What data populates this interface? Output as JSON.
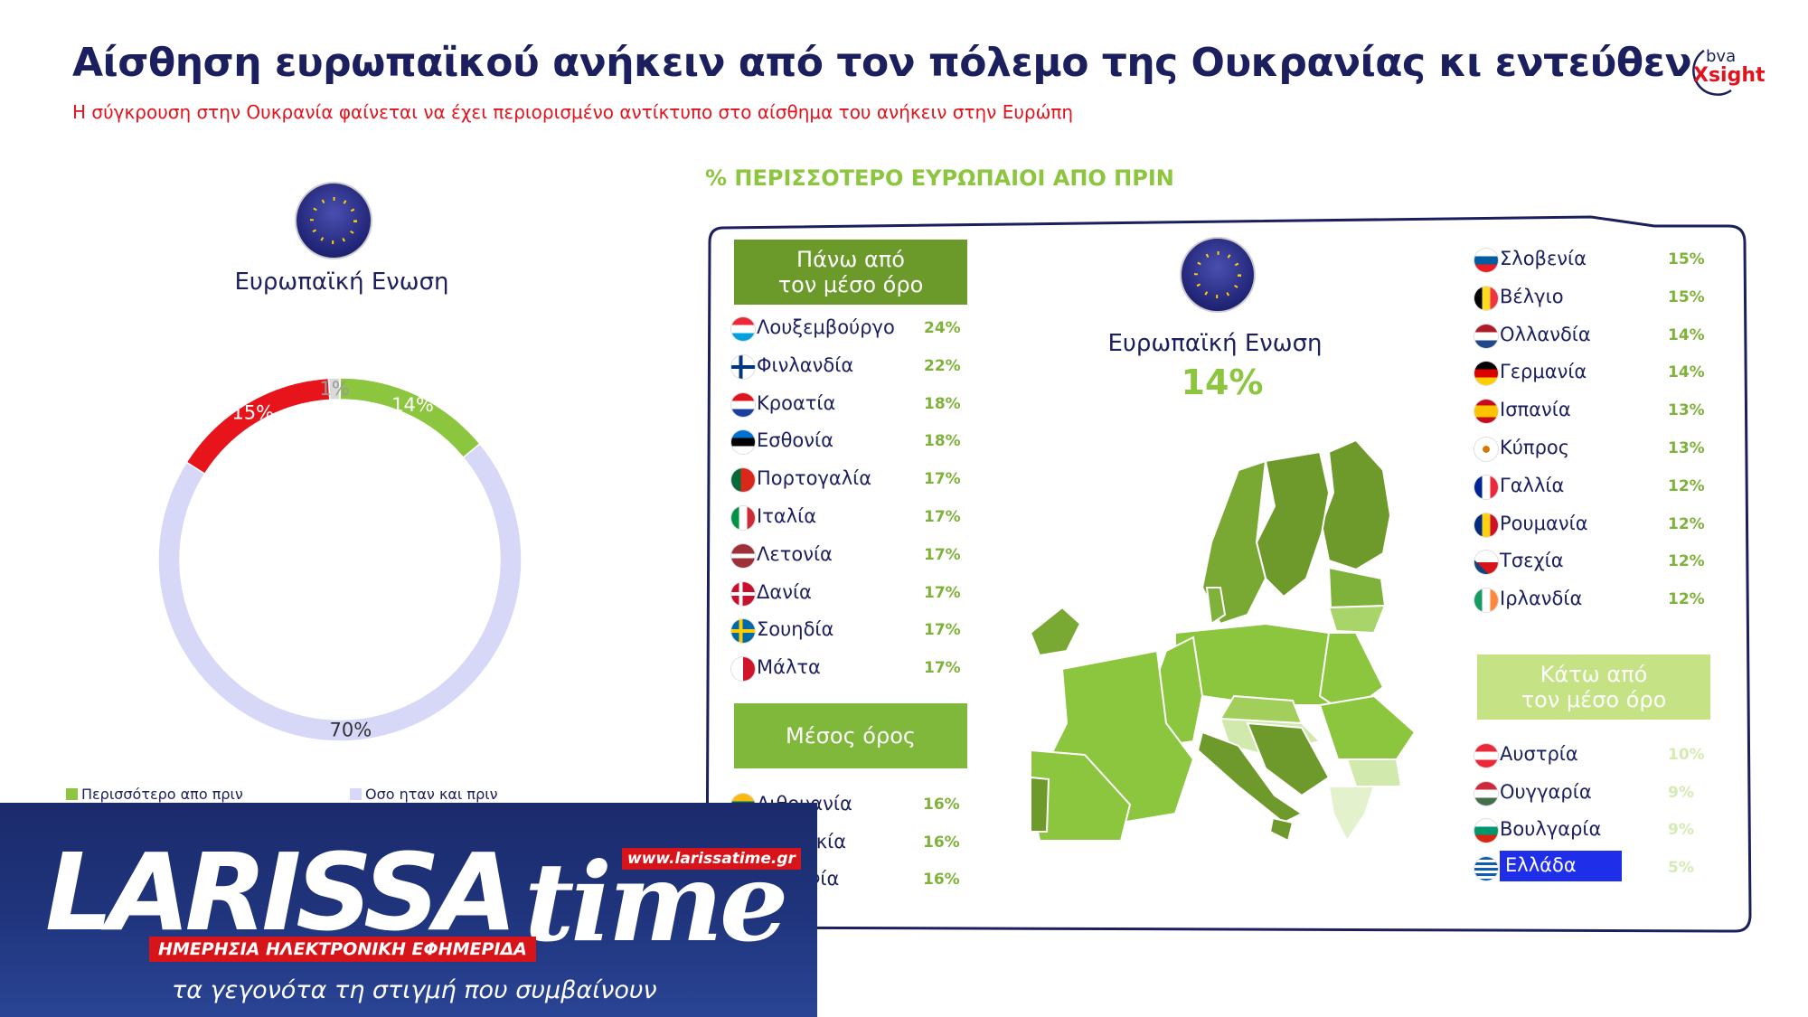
{
  "header": {
    "title": "Αίσθηση ευρωπαϊκού ανήκειν από τον πόλεμο της Ουκρανίας κι εντεύθεν",
    "subtitle": "Η σύγκρουση στην Ουκρανία φαίνεται να έχει περιορισμένο αντίκτυπο στο αίσθημα του ανήκειν στην Ευρώπη",
    "logo": {
      "line1": "bva",
      "line2": "Xsight"
    }
  },
  "chart_data": {
    "type": "pie",
    "title": "Ευρωπαϊκή Ενωση",
    "categories": [
      "Περισσότερο απο πριν",
      "Οσο ηταν και πριν",
      null,
      null
    ],
    "values": [
      14,
      70,
      15,
      1
    ],
    "value_labels": [
      "14%",
      "70%",
      "15%",
      "1%"
    ],
    "colors": [
      "#8cc63f",
      "#d7d7f8",
      "#e8141b",
      "#d9d9d9"
    ]
  },
  "panel": {
    "heading": "% ΠΕΡΙΣΣΟΤΕΡΟ ΕΥΡΩΠΑΙΟΙ ΑΠΟ ΠΡΙΝ",
    "eu_label": "Ευρωπαϊκή Ενωση",
    "eu_value": "14%",
    "above": {
      "title": [
        "Πάνω από",
        "τον μέσο όρο"
      ],
      "rows": [
        {
          "name": "Λουξεμβούργο",
          "value": "24%"
        },
        {
          "name": "Φινλανδία",
          "value": "22%"
        },
        {
          "name": "Κροατία",
          "value": "18%"
        },
        {
          "name": "Εσθονία",
          "value": "18%"
        },
        {
          "name": "Πορτογαλία",
          "value": "17%"
        },
        {
          "name": "Ιταλία",
          "value": "17%"
        },
        {
          "name": "Λετονία",
          "value": "17%"
        },
        {
          "name": "Δανία",
          "value": "17%"
        },
        {
          "name": "Σουηδία",
          "value": "17%"
        },
        {
          "name": "Μάλτα",
          "value": "17%"
        }
      ]
    },
    "average": {
      "title": "Μέσος όρος",
      "rows": [
        {
          "name": "Λιθουανία",
          "value": "16%"
        },
        {
          "name": "Σλοβακία",
          "value": "16%"
        },
        {
          "name": "Πολωνία",
          "value": "16%"
        }
      ]
    },
    "middle": {
      "rows": [
        {
          "name": "Σλοβενία",
          "value": "15%"
        },
        {
          "name": "Βέλγιο",
          "value": "15%"
        },
        {
          "name": "Ολλανδία",
          "value": "14%"
        },
        {
          "name": "Γερμανία",
          "value": "14%"
        },
        {
          "name": "Ισπανία",
          "value": "13%"
        },
        {
          "name": "Κύπρος",
          "value": "13%"
        },
        {
          "name": "Γαλλία",
          "value": "12%"
        },
        {
          "name": "Ρουμανία",
          "value": "12%"
        },
        {
          "name": "Τσεχία",
          "value": "12%"
        },
        {
          "name": "Ιρλανδία",
          "value": "12%"
        }
      ]
    },
    "below": {
      "title": [
        "Κάτω από",
        "τον μέσο όρο"
      ],
      "rows": [
        {
          "name": "Αυστρία",
          "value": "10%"
        },
        {
          "name": "Ουγγαρία",
          "value": "9%"
        },
        {
          "name": "Βουλγαρία",
          "value": "9%"
        },
        {
          "name": "Ελλάδα",
          "value": "5%"
        }
      ]
    }
  },
  "banner": {
    "brand": "LARISSA",
    "brand2": "time",
    "url": "www.larissatime.gr",
    "tagline": "ΗΜΕΡΗΣΙΑ ΗΛΕΚΤΡΟΝΙΚΗ ΕΦΗΜΕΡΙΔΑ",
    "slogan": "τα γεγονότα τη στιγμή που συμβαίνουν"
  }
}
